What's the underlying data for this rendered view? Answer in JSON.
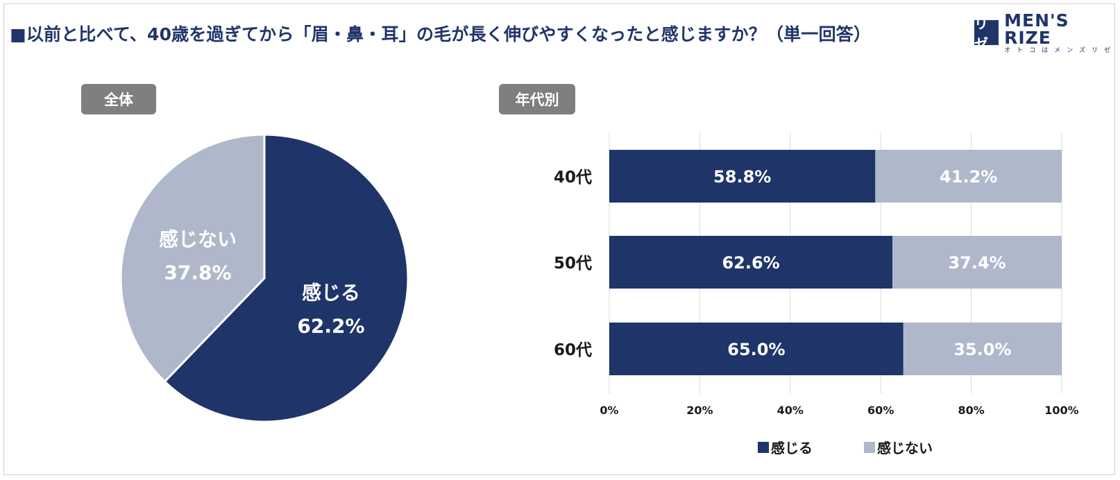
{
  "title": "■以前と比べて、40歳を過ぎてから「眉・鼻・耳」の毛が長く伸びやすくなったと感じますか？（単一回答）",
  "logo": {
    "mark": "リゼ",
    "name": "MEN'S RIZE",
    "sub": "オトコはメンズリゼ"
  },
  "colors": {
    "feel": "#1f3569",
    "not_feel": "#aeb8ca",
    "label_bg": "#7f7f7f"
  },
  "sections": {
    "overall": "全体",
    "by_age": "年代別"
  },
  "chart_data": [
    {
      "type": "pie",
      "title": "全体",
      "slices": [
        {
          "label": "感じる",
          "value": 62.2,
          "display": "62.2%"
        },
        {
          "label": "感じない",
          "value": 37.8,
          "display": "37.8%"
        }
      ]
    },
    {
      "type": "bar",
      "orientation": "horizontal",
      "stacked": true,
      "title": "年代別",
      "categories": [
        "40代",
        "50代",
        "60代"
      ],
      "series": [
        {
          "name": "感じる",
          "values": [
            58.8,
            62.6,
            65.0
          ],
          "labels": [
            "58.8%",
            "62.6%",
            "65.0%"
          ]
        },
        {
          "name": "感じない",
          "values": [
            41.2,
            37.4,
            35.0
          ],
          "labels": [
            "41.2%",
            "37.4%",
            "35.0%"
          ]
        }
      ],
      "xlim": [
        0,
        100
      ],
      "xticks": [
        "0%",
        "20%",
        "40%",
        "60%",
        "80%",
        "100%"
      ],
      "grid": true,
      "legend": "bottom"
    }
  ],
  "legend": {
    "feel": "感じる",
    "not_feel": "感じない"
  }
}
